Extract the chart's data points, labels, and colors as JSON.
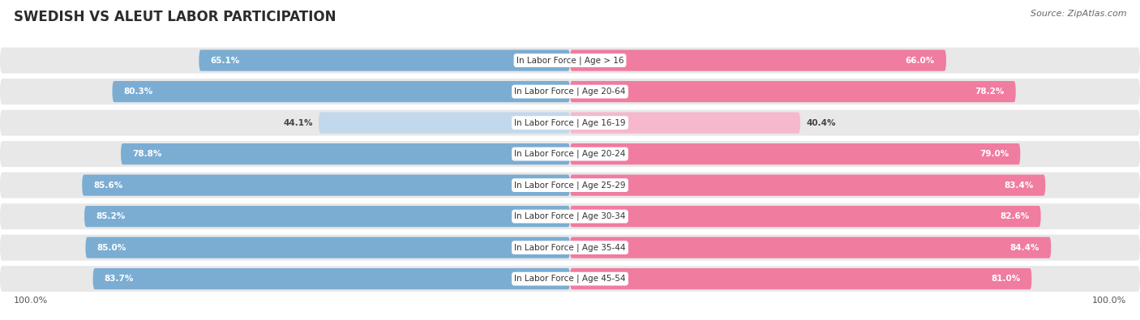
{
  "title": "SWEDISH VS ALEUT LABOR PARTICIPATION",
  "source": "Source: ZipAtlas.com",
  "categories": [
    "In Labor Force | Age > 16",
    "In Labor Force | Age 20-64",
    "In Labor Force | Age 16-19",
    "In Labor Force | Age 20-24",
    "In Labor Force | Age 25-29",
    "In Labor Force | Age 30-34",
    "In Labor Force | Age 35-44",
    "In Labor Force | Age 45-54"
  ],
  "swedish_values": [
    65.1,
    80.3,
    44.1,
    78.8,
    85.6,
    85.2,
    85.0,
    83.7
  ],
  "aleut_values": [
    66.0,
    78.2,
    40.4,
    79.0,
    83.4,
    82.6,
    84.4,
    81.0
  ],
  "swedish_color": "#7BADD3",
  "aleut_color": "#F07CA0",
  "swedish_light_color": "#C2D8EC",
  "aleut_light_color": "#F5B8CC",
  "bg_color": "#ffffff",
  "row_bg_color": "#e8e8e8",
  "max_value": 100.0,
  "title_fontsize": 12,
  "source_fontsize": 8,
  "label_fontsize": 7.5,
  "value_fontsize": 7.5
}
